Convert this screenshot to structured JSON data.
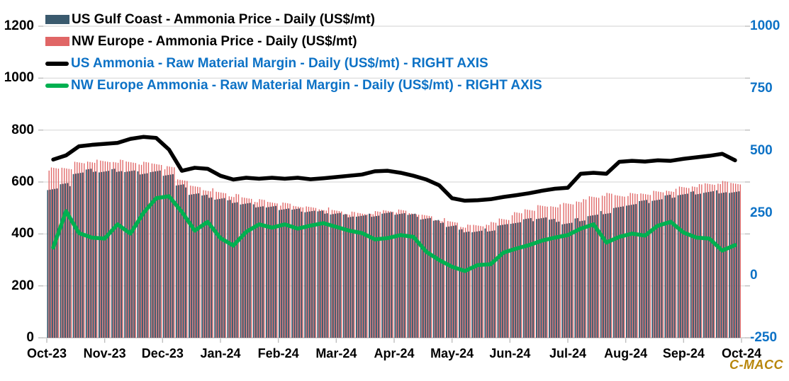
{
  "watermark": "C-MACC",
  "legend": {
    "items": [
      {
        "label": "US Gulf Coast - Ammonia Price - Daily (US$/mt)",
        "swatch": "bar",
        "color": "#3a5a6e",
        "text_color": "#000000"
      },
      {
        "label": "NW Europe - Ammonia Price - Daily (US$/mt)",
        "swatch": "bar",
        "color": "#e06666",
        "text_color": "#000000"
      },
      {
        "label": "US Ammonia - Raw Material Margin - Daily (US$/mt) - RIGHT AXIS",
        "swatch": "line",
        "color": "#000000",
        "text_color": "#0d72c6"
      },
      {
        "label": "NW Europe Ammonia - Raw Material Margin - Daily (US$/mt) - RIGHT AXIS",
        "swatch": "line",
        "color": "#00b050",
        "text_color": "#0d72c6"
      }
    ]
  },
  "colors": {
    "us_price_bar": "#3a5a6e",
    "nwe_price_bar": "#e06666",
    "us_margin_line": "#000000",
    "nwe_margin_line": "#00b050",
    "right_axis_text": "#0d72c6",
    "left_axis_text": "#000000",
    "gridline": "#d9d9d9",
    "axis_line": "#bfbfbf",
    "watermark": "#B8860B"
  },
  "chart_data": {
    "type": "combo (daily bars + lines, dual axis)",
    "x_labels": [
      "Oct-23",
      "Nov-23",
      "Dec-23",
      "Jan-24",
      "Feb-24",
      "Mar-24",
      "Apr-24",
      "May-24",
      "Jun-24",
      "Jul-24",
      "Aug-24",
      "Sep-24",
      "Oct-24"
    ],
    "sampling_note": "54 weekly estimates of the daily series spanning Oct-2023 to Oct-2024; bars are rendered as 5 trading days per week",
    "left_axis": {
      "min": 0,
      "max": 1200,
      "step": 200,
      "ticks": [
        0,
        200,
        400,
        600,
        800,
        1000,
        1200
      ]
    },
    "right_axis": {
      "min": -250,
      "max": 1000,
      "step": 250,
      "ticks": [
        -250,
        0,
        250,
        500,
        750,
        1000
      ]
    },
    "series": [
      {
        "name": "US Gulf Coast - Ammonia Price - Daily (US$/mt)",
        "type": "bar",
        "axis": "left",
        "color": "#3a5a6e",
        "values": [
          575,
          590,
          635,
          645,
          640,
          645,
          640,
          635,
          638,
          630,
          585,
          555,
          545,
          535,
          525,
          515,
          508,
          502,
          498,
          492,
          488,
          484,
          478,
          470,
          468,
          472,
          478,
          480,
          472,
          460,
          448,
          430,
          412,
          408,
          415,
          432,
          445,
          455,
          462,
          452,
          440,
          455,
          470,
          482,
          500,
          515,
          525,
          532,
          545,
          552,
          558,
          560,
          562,
          558
        ]
      },
      {
        "name": "NW Europe - Ammonia Price - Daily (US$/mt)",
        "type": "bar",
        "axis": "left",
        "color": "#e06666",
        "values": [
          650,
          655,
          672,
          680,
          678,
          680,
          676,
          672,
          670,
          655,
          610,
          580,
          570,
          558,
          548,
          538,
          528,
          522,
          515,
          508,
          500,
          496,
          488,
          480,
          478,
          482,
          490,
          488,
          480,
          468,
          455,
          445,
          430,
          432,
          440,
          458,
          478,
          495,
          505,
          508,
          515,
          528,
          542,
          552,
          548,
          552,
          556,
          560,
          568,
          578,
          586,
          592,
          598,
          595
        ]
      },
      {
        "name": "US Ammonia - Raw Material Margin - Daily (US$/mt) - RIGHT AXIS",
        "type": "line",
        "axis": "right",
        "color": "#000000",
        "values": [
          465,
          482,
          518,
          524,
          528,
          532,
          548,
          556,
          552,
          505,
          420,
          432,
          428,
          400,
          385,
          392,
          388,
          392,
          388,
          392,
          386,
          390,
          395,
          400,
          405,
          418,
          420,
          412,
          400,
          385,
          362,
          310,
          300,
          302,
          306,
          315,
          322,
          330,
          340,
          348,
          352,
          408,
          412,
          408,
          456,
          460,
          457,
          462,
          460,
          468,
          474,
          480,
          488,
          462
        ]
      },
      {
        "name": "NW Europe Ammonia - Raw Material Margin - Daily (US$/mt) - RIGHT AXIS",
        "type": "line",
        "axis": "right",
        "color": "#00b050",
        "values": [
          112,
          258,
          170,
          152,
          148,
          205,
          168,
          250,
          310,
          318,
          255,
          180,
          215,
          150,
          120,
          175,
          205,
          192,
          205,
          188,
          200,
          210,
          195,
          180,
          170,
          145,
          150,
          162,
          155,
          95,
          62,
          35,
          18,
          42,
          45,
          92,
          108,
          122,
          140,
          152,
          162,
          188,
          205,
          132,
          155,
          168,
          160,
          200,
          215,
          172,
          152,
          148,
          100,
          122
        ]
      }
    ]
  }
}
